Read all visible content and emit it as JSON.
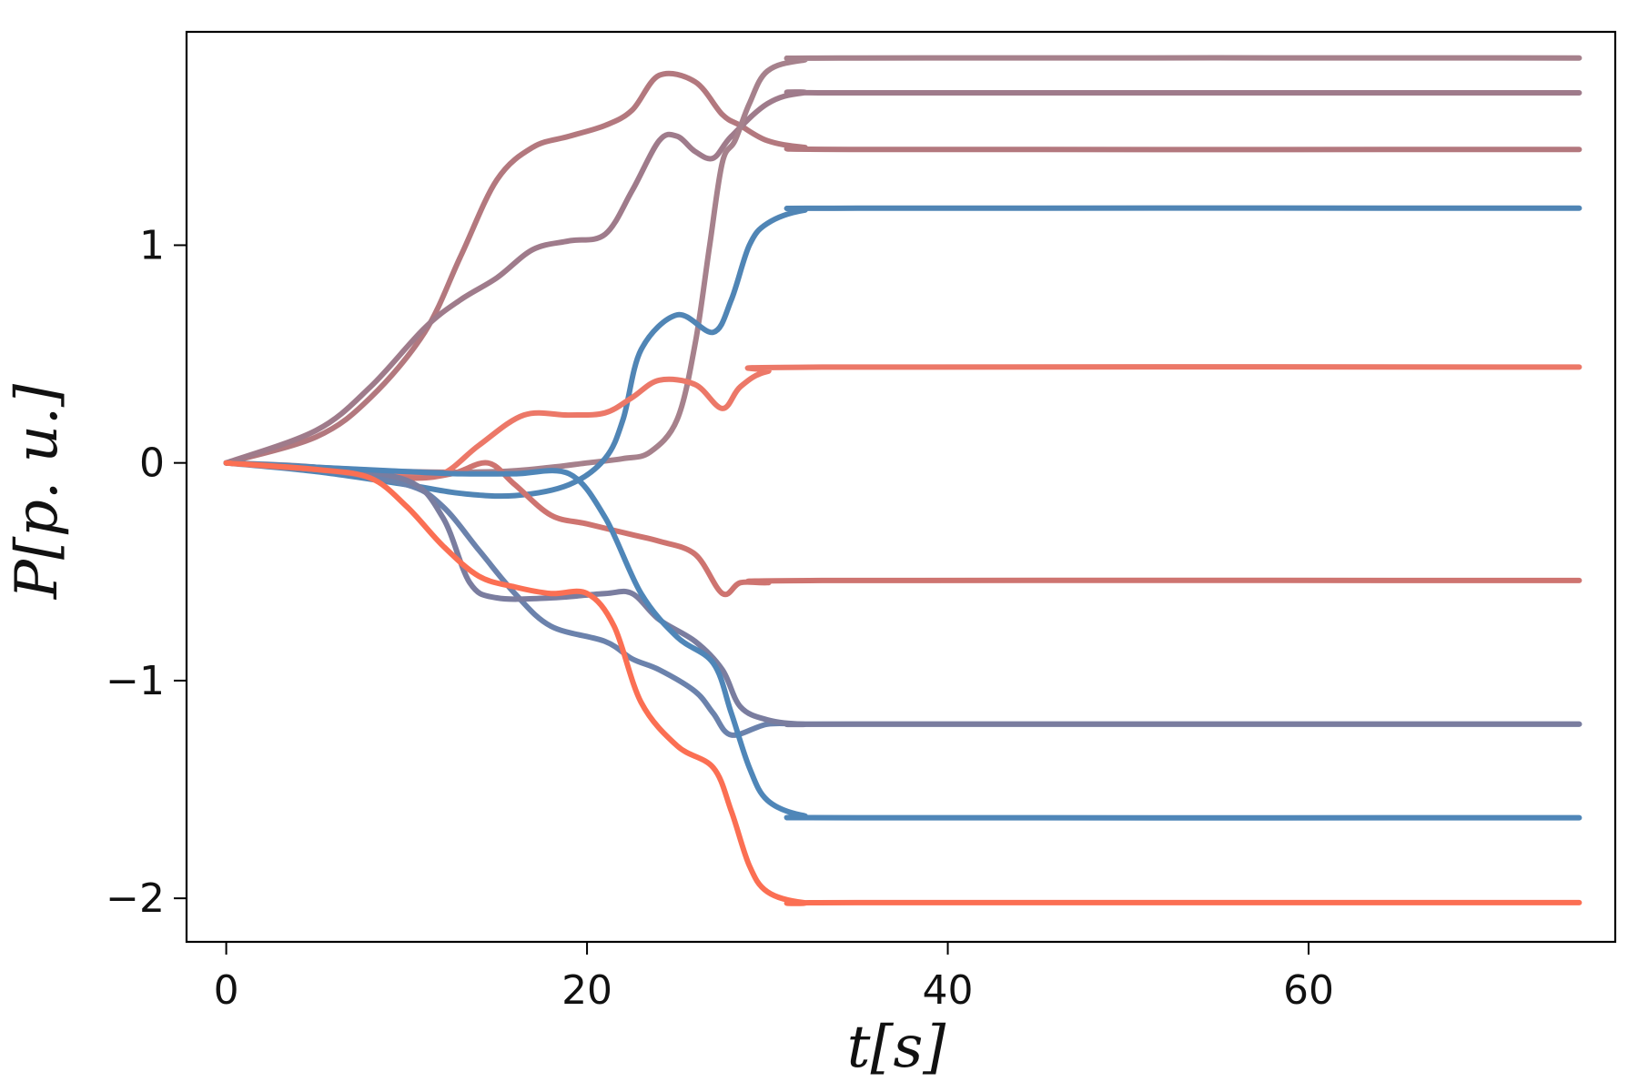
{
  "chart_data": {
    "type": "line",
    "title": "",
    "xlabel": "t[s]",
    "ylabel": "P[p. u.]",
    "xlim": [
      -2.2,
      77
    ],
    "ylim": [
      -2.2,
      1.98
    ],
    "xticks": [
      0,
      20,
      40,
      60
    ],
    "xtick_labels": [
      "0",
      "20",
      "40",
      "60"
    ],
    "yticks": [
      -2,
      -1,
      0,
      1
    ],
    "ytick_labels": [
      "−2",
      "−1",
      "0",
      "1"
    ],
    "grid": false,
    "legend": "none",
    "series": [
      {
        "color": "#b3787e",
        "x": [
          0,
          5,
          8,
          11,
          13,
          15,
          17,
          19,
          21,
          22.5,
          24,
          26,
          27.5,
          28.5,
          30,
          32,
          35,
          75
        ],
        "y": [
          0,
          0.12,
          0.3,
          0.6,
          0.95,
          1.3,
          1.45,
          1.5,
          1.55,
          1.62,
          1.78,
          1.75,
          1.6,
          1.55,
          1.48,
          1.45,
          1.44,
          1.44
        ]
      },
      {
        "color": "#9f7b8b",
        "x": [
          0,
          5,
          8,
          11,
          13,
          15,
          17,
          19,
          21,
          22.5,
          24,
          25,
          26,
          27,
          28,
          30,
          32,
          35,
          75
        ],
        "y": [
          0,
          0.15,
          0.35,
          0.62,
          0.75,
          0.85,
          0.98,
          1.02,
          1.05,
          1.25,
          1.48,
          1.5,
          1.43,
          1.4,
          1.5,
          1.65,
          1.7,
          1.7,
          1.7
        ]
      },
      {
        "color": "#a6818c",
        "x": [
          0,
          5,
          10,
          15,
          18,
          20,
          22,
          23.5,
          25,
          26,
          26.8,
          27.5,
          28.2,
          29,
          30,
          32,
          35,
          75
        ],
        "y": [
          0,
          -0.02,
          -0.04,
          -0.04,
          -0.02,
          0,
          0.02,
          0.05,
          0.2,
          0.55,
          1.0,
          1.38,
          1.48,
          1.65,
          1.8,
          1.85,
          1.86,
          1.86
        ]
      },
      {
        "color": "#5085b5",
        "x": [
          0,
          5,
          10,
          13,
          16,
          19,
          21,
          22,
          23,
          25,
          27,
          28,
          29,
          30,
          32,
          35,
          75
        ],
        "y": [
          0,
          -0.04,
          -0.1,
          -0.14,
          -0.15,
          -0.1,
          0.02,
          0.2,
          0.52,
          0.68,
          0.6,
          0.75,
          1.0,
          1.1,
          1.16,
          1.17,
          1.17
        ]
      },
      {
        "color": "#ec7868",
        "x": [
          0,
          5,
          10,
          12,
          14,
          16.5,
          19,
          21,
          22.5,
          24,
          26,
          27.5,
          28.5,
          30,
          33,
          75
        ],
        "y": [
          0,
          -0.03,
          -0.06,
          -0.05,
          0.08,
          0.22,
          0.22,
          0.23,
          0.3,
          0.38,
          0.36,
          0.25,
          0.35,
          0.42,
          0.44,
          0.44
        ]
      },
      {
        "color": "#ce7470",
        "x": [
          0,
          5,
          10,
          12.5,
          14.5,
          16,
          18,
          20,
          22.5,
          24,
          26,
          27.5,
          28.5,
          30,
          33,
          75
        ],
        "y": [
          0,
          -0.03,
          -0.07,
          -0.05,
          0,
          -0.1,
          -0.24,
          -0.28,
          -0.33,
          -0.36,
          -0.42,
          -0.6,
          -0.55,
          -0.55,
          -0.54,
          -0.54
        ]
      },
      {
        "color": "#6b82ac",
        "x": [
          0,
          5,
          10,
          12,
          14,
          16,
          18,
          21,
          22.5,
          24,
          26,
          27,
          28,
          30,
          32,
          35,
          75
        ],
        "y": [
          0,
          -0.03,
          -0.1,
          -0.2,
          -0.4,
          -0.6,
          -0.75,
          -0.82,
          -0.9,
          -0.95,
          -1.05,
          -1.15,
          -1.25,
          -1.2,
          -1.2,
          -1.2,
          -1.2
        ]
      },
      {
        "color": "#7a7d9f",
        "x": [
          0,
          5,
          10,
          12,
          13.5,
          15,
          18,
          21,
          22.5,
          24,
          26,
          27.5,
          28.5,
          30,
          32,
          35,
          75
        ],
        "y": [
          0,
          -0.02,
          -0.08,
          -0.25,
          -0.55,
          -0.62,
          -0.62,
          -0.6,
          -0.6,
          -0.72,
          -0.82,
          -0.95,
          -1.12,
          -1.18,
          -1.2,
          -1.2,
          -1.2
        ]
      },
      {
        "color": "#4f86b8",
        "x": [
          0,
          5,
          10,
          13,
          16,
          19,
          21,
          23,
          25,
          27,
          28,
          29,
          30,
          32,
          35,
          75
        ],
        "y": [
          0,
          -0.02,
          -0.04,
          -0.05,
          -0.05,
          -0.05,
          -0.25,
          -0.6,
          -0.8,
          -0.92,
          -1.15,
          -1.4,
          -1.55,
          -1.62,
          -1.63,
          -1.63
        ]
      },
      {
        "color": "#fb6f53",
        "x": [
          0,
          5,
          8,
          10,
          12,
          14,
          16,
          18,
          20,
          21.5,
          23,
          25,
          27,
          28,
          29,
          30,
          32,
          35,
          75
        ],
        "y": [
          0,
          -0.03,
          -0.07,
          -0.2,
          -0.38,
          -0.52,
          -0.57,
          -0.6,
          -0.6,
          -0.75,
          -1.1,
          -1.3,
          -1.4,
          -1.6,
          -1.85,
          -1.97,
          -2.02,
          -2.02,
          -2.02
        ]
      }
    ]
  }
}
